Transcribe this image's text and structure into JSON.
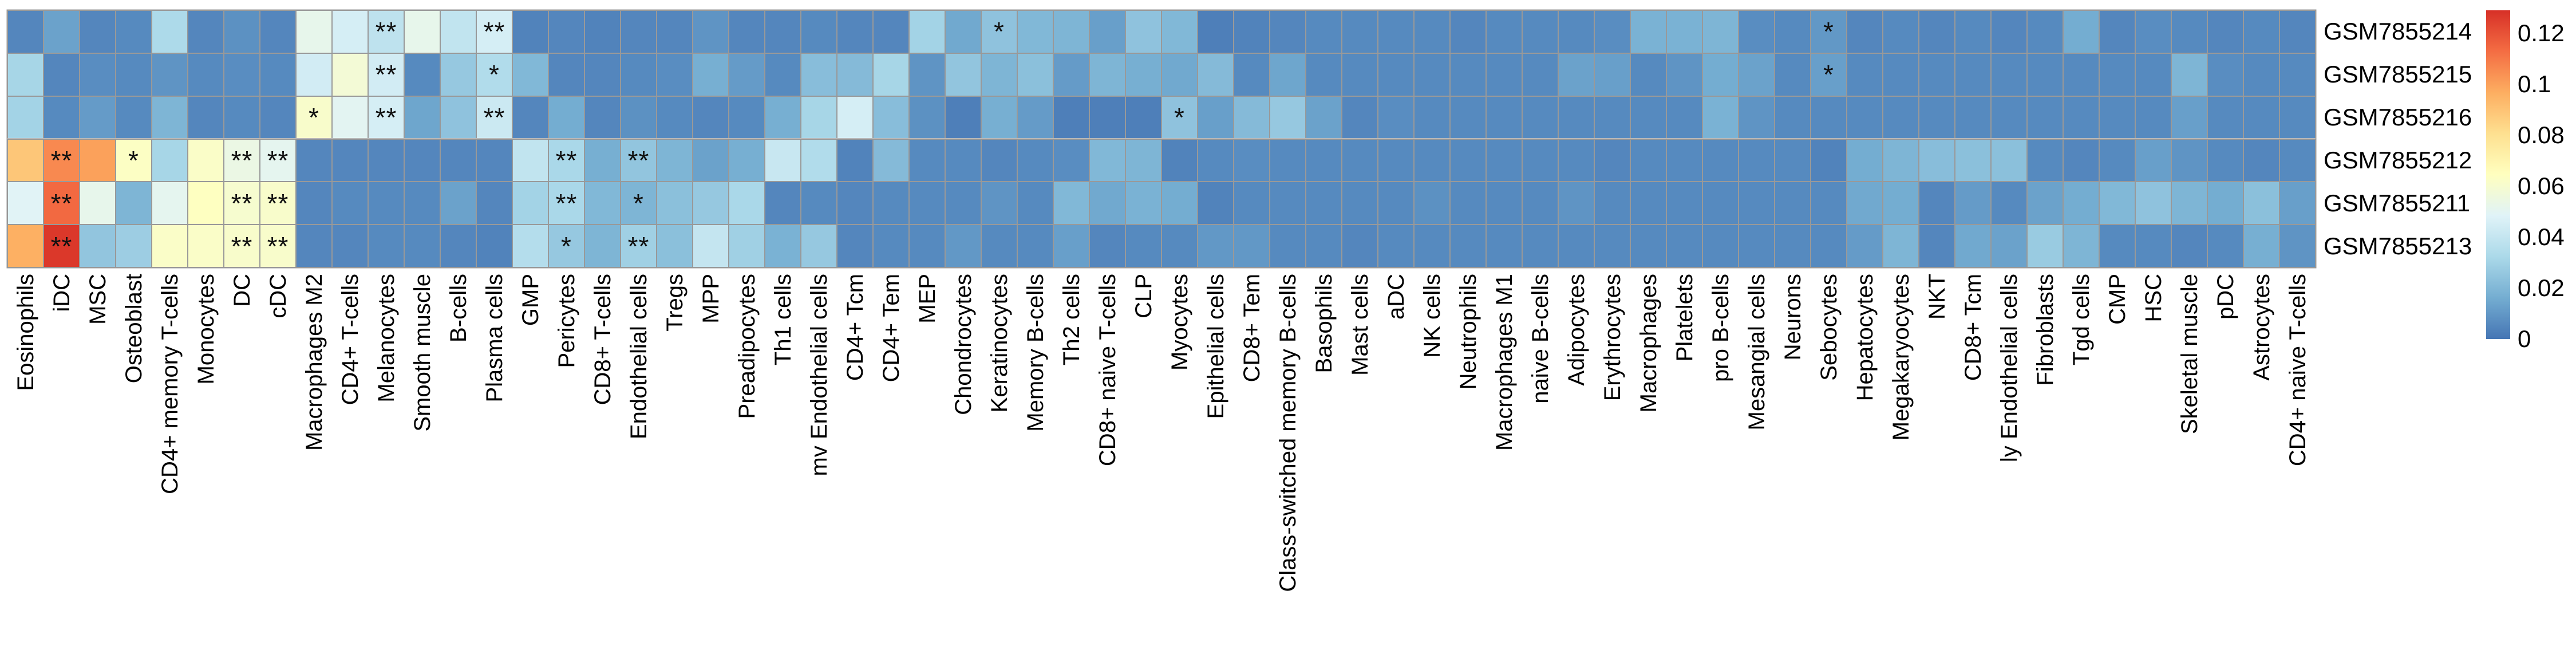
{
  "chart_data": {
    "type": "heatmap",
    "title": "",
    "rows": [
      "GSM7855214",
      "GSM7855215",
      "GSM7855216",
      "GSM7855212",
      "GSM7855211",
      "GSM7855213"
    ],
    "columns": [
      "Eosinophils",
      "iDC",
      "MSC",
      "Osteoblast",
      "CD4+ memory T-cells",
      "Monocytes",
      "DC",
      "cDC",
      "Macrophages M2",
      "CD4+ T-cells",
      "Melanocytes",
      "Smooth muscle",
      "B-cells",
      "Plasma cells",
      "GMP",
      "Pericytes",
      "CD8+ T-cells",
      "Endothelial cells",
      "Tregs",
      "MPP",
      "Preadipocytes",
      "Th1 cells",
      "mv Endothelial cells",
      "CD4+ Tcm",
      "CD4+ Tem",
      "MEP",
      "Chondrocytes",
      "Keratinocytes",
      "Memory B-cells",
      "Th2 cells",
      "CD8+ naive T-cells",
      "CLP",
      "Myocytes",
      "Epithelial cells",
      "CD8+ Tem",
      "Class-switched memory B-cells",
      "Basophils",
      "Mast cells",
      "aDC",
      "NK cells",
      "Neutrophils",
      "Macrophages M1",
      "naive B-cells",
      "Adipocytes",
      "Erythrocytes",
      "Macrophages",
      "Platelets",
      "pro B-cells",
      "Mesangial cells",
      "Neurons",
      "Sebocytes",
      "Hepatocytes",
      "Megakaryocytes",
      "NKT",
      "CD8+ Tcm",
      "ly Endothelial cells",
      "Fibroblasts",
      "Tgd cells",
      "CMP",
      "HSC",
      "Skeletal muscle",
      "pDC",
      "Astrocytes",
      "CD4+ naive T-cells"
    ],
    "values": [
      [
        0.005,
        0.013,
        0.005,
        0.006,
        0.033,
        0.005,
        0.008,
        0.005,
        0.052,
        0.045,
        0.038,
        0.052,
        0.039,
        0.045,
        0.004,
        0.005,
        0.004,
        0.005,
        0.005,
        0.009,
        0.005,
        0.005,
        0.006,
        0.005,
        0.005,
        0.03,
        0.015,
        0.024,
        0.02,
        0.019,
        0.012,
        0.024,
        0.02,
        0.003,
        0.004,
        0.005,
        0.006,
        0.006,
        0.006,
        0.006,
        0.005,
        0.006,
        0.006,
        0.006,
        0.007,
        0.018,
        0.018,
        0.019,
        0.007,
        0.006,
        0.01,
        0.005,
        0.006,
        0.005,
        0.006,
        0.005,
        0.006,
        0.016,
        0.005,
        0.007,
        0.006,
        0.005,
        0.006,
        0.005
      ],
      [
        0.031,
        0.005,
        0.007,
        0.006,
        0.009,
        0.006,
        0.007,
        0.006,
        0.044,
        0.058,
        0.044,
        0.006,
        0.026,
        0.034,
        0.02,
        0.005,
        0.005,
        0.006,
        0.007,
        0.017,
        0.011,
        0.006,
        0.022,
        0.021,
        0.031,
        0.009,
        0.025,
        0.019,
        0.023,
        0.011,
        0.019,
        0.017,
        0.015,
        0.021,
        0.006,
        0.014,
        0.006,
        0.006,
        0.006,
        0.006,
        0.006,
        0.006,
        0.006,
        0.013,
        0.012,
        0.006,
        0.009,
        0.016,
        0.013,
        0.006,
        0.012,
        0.006,
        0.006,
        0.006,
        0.006,
        0.006,
        0.006,
        0.006,
        0.006,
        0.006,
        0.019,
        0.007,
        0.006,
        0.006
      ],
      [
        0.03,
        0.006,
        0.011,
        0.006,
        0.019,
        0.005,
        0.006,
        0.005,
        0.061,
        0.05,
        0.045,
        0.014,
        0.024,
        0.042,
        0.005,
        0.016,
        0.005,
        0.008,
        0.006,
        0.005,
        0.006,
        0.017,
        0.031,
        0.045,
        0.022,
        0.008,
        0.003,
        0.017,
        0.011,
        0.003,
        0.003,
        0.003,
        0.024,
        0.012,
        0.021,
        0.026,
        0.013,
        0.005,
        0.007,
        0.006,
        0.006,
        0.006,
        0.006,
        0.006,
        0.006,
        0.006,
        0.006,
        0.018,
        0.009,
        0.006,
        0.006,
        0.006,
        0.006,
        0.006,
        0.006,
        0.006,
        0.006,
        0.006,
        0.006,
        0.006,
        0.012,
        0.006,
        0.006,
        0.006
      ],
      [
        0.089,
        0.106,
        0.1,
        0.063,
        0.031,
        0.062,
        0.054,
        0.051,
        0.005,
        0.005,
        0.005,
        0.005,
        0.005,
        0.005,
        0.039,
        0.032,
        0.017,
        0.025,
        0.019,
        0.013,
        0.017,
        0.041,
        0.034,
        0.004,
        0.021,
        0.006,
        0.006,
        0.005,
        0.006,
        0.007,
        0.02,
        0.019,
        0.004,
        0.006,
        0.007,
        0.006,
        0.006,
        0.006,
        0.006,
        0.006,
        0.006,
        0.006,
        0.006,
        0.006,
        0.005,
        0.006,
        0.006,
        0.006,
        0.006,
        0.006,
        0.004,
        0.016,
        0.019,
        0.022,
        0.023,
        0.023,
        0.006,
        0.005,
        0.006,
        0.012,
        0.009,
        0.006,
        0.005,
        0.006
      ],
      [
        0.049,
        0.114,
        0.052,
        0.019,
        0.051,
        0.064,
        0.06,
        0.061,
        0.005,
        0.006,
        0.006,
        0.006,
        0.013,
        0.005,
        0.03,
        0.032,
        0.02,
        0.019,
        0.023,
        0.026,
        0.032,
        0.005,
        0.006,
        0.005,
        0.006,
        0.006,
        0.006,
        0.009,
        0.006,
        0.02,
        0.015,
        0.018,
        0.016,
        0.004,
        0.006,
        0.006,
        0.006,
        0.006,
        0.006,
        0.008,
        0.006,
        0.006,
        0.006,
        0.009,
        0.006,
        0.006,
        0.006,
        0.006,
        0.006,
        0.006,
        0.006,
        0.015,
        0.016,
        0.005,
        0.011,
        0.006,
        0.013,
        0.016,
        0.02,
        0.024,
        0.019,
        0.016,
        0.023,
        0.012
      ],
      [
        0.096,
        0.127,
        0.025,
        0.028,
        0.062,
        0.062,
        0.061,
        0.061,
        0.005,
        0.005,
        0.006,
        0.006,
        0.005,
        0.004,
        0.035,
        0.026,
        0.019,
        0.029,
        0.023,
        0.04,
        0.029,
        0.018,
        0.026,
        0.005,
        0.006,
        0.006,
        0.01,
        0.006,
        0.006,
        0.012,
        0.005,
        0.006,
        0.006,
        0.01,
        0.01,
        0.006,
        0.006,
        0.005,
        0.006,
        0.006,
        0.006,
        0.006,
        0.006,
        0.006,
        0.006,
        0.006,
        0.006,
        0.006,
        0.006,
        0.006,
        0.006,
        0.011,
        0.019,
        0.005,
        0.015,
        0.013,
        0.027,
        0.019,
        0.006,
        0.006,
        0.005,
        0.006,
        0.017,
        0.009
      ]
    ],
    "significance": [
      {
        "row": 0,
        "col": 10,
        "mark": "**"
      },
      {
        "row": 0,
        "col": 13,
        "mark": "**"
      },
      {
        "row": 0,
        "col": 27,
        "mark": "*"
      },
      {
        "row": 0,
        "col": 50,
        "mark": "*"
      },
      {
        "row": 1,
        "col": 10,
        "mark": "**"
      },
      {
        "row": 1,
        "col": 13,
        "mark": "*"
      },
      {
        "row": 1,
        "col": 50,
        "mark": "*"
      },
      {
        "row": 2,
        "col": 8,
        "mark": "*"
      },
      {
        "row": 2,
        "col": 10,
        "mark": "**"
      },
      {
        "row": 2,
        "col": 13,
        "mark": "**"
      },
      {
        "row": 2,
        "col": 32,
        "mark": "*"
      },
      {
        "row": 3,
        "col": 1,
        "mark": "**"
      },
      {
        "row": 3,
        "col": 3,
        "mark": "*"
      },
      {
        "row": 3,
        "col": 6,
        "mark": "**"
      },
      {
        "row": 3,
        "col": 7,
        "mark": "**"
      },
      {
        "row": 3,
        "col": 15,
        "mark": "**"
      },
      {
        "row": 3,
        "col": 17,
        "mark": "**"
      },
      {
        "row": 4,
        "col": 1,
        "mark": "**"
      },
      {
        "row": 4,
        "col": 6,
        "mark": "**"
      },
      {
        "row": 4,
        "col": 7,
        "mark": "**"
      },
      {
        "row": 4,
        "col": 15,
        "mark": "**"
      },
      {
        "row": 4,
        "col": 17,
        "mark": "*"
      },
      {
        "row": 5,
        "col": 1,
        "mark": "**"
      },
      {
        "row": 5,
        "col": 6,
        "mark": "**"
      },
      {
        "row": 5,
        "col": 7,
        "mark": "**"
      },
      {
        "row": 5,
        "col": 15,
        "mark": "*"
      },
      {
        "row": 5,
        "col": 17,
        "mark": "**"
      }
    ],
    "colorbar": {
      "tick_labels": [
        "0.12",
        "0.1",
        "0.08",
        "0.06",
        "0.04",
        "0.02",
        "0"
      ],
      "tick_values": [
        0.12,
        0.1,
        0.08,
        0.06,
        0.04,
        0.02,
        0
      ],
      "vmin": 0,
      "vmax": 0.129
    },
    "colormap": {
      "name": "RdYlBu_r",
      "anchors": [
        "#4575b4",
        "#74add1",
        "#abd9e9",
        "#e0f3f8",
        "#ffffbf",
        "#fee090",
        "#fdae61",
        "#f46d43",
        "#d73027"
      ]
    },
    "grid_line_color": "#999999",
    "legend_position": "right",
    "xlabel": "",
    "ylabel": ""
  }
}
